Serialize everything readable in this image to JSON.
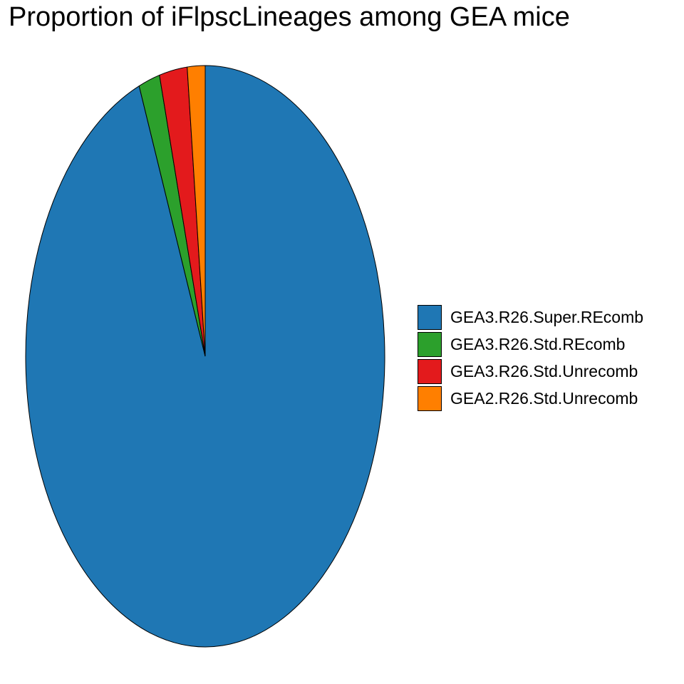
{
  "chart_data": {
    "type": "pie",
    "title": "Proportion of iFlpscLineages among GEA mice",
    "slices": [
      {
        "label": "GEA3.R26.Super.REcomb",
        "value": 0.94,
        "color": "#1F77B4"
      },
      {
        "label": "GEA3.R26.Std.REcomb",
        "value": 0.019,
        "color": "#2CA02C"
      },
      {
        "label": "GEA3.R26.Std.Unrecomb",
        "value": 0.025,
        "color": "#E31A1C"
      },
      {
        "label": "GEA2.R26.Std.Unrecomb",
        "value": 0.016,
        "color": "#FF7F00"
      }
    ],
    "legend_position": "right",
    "start_angle": "12 o'clock",
    "direction": "clockwise"
  }
}
